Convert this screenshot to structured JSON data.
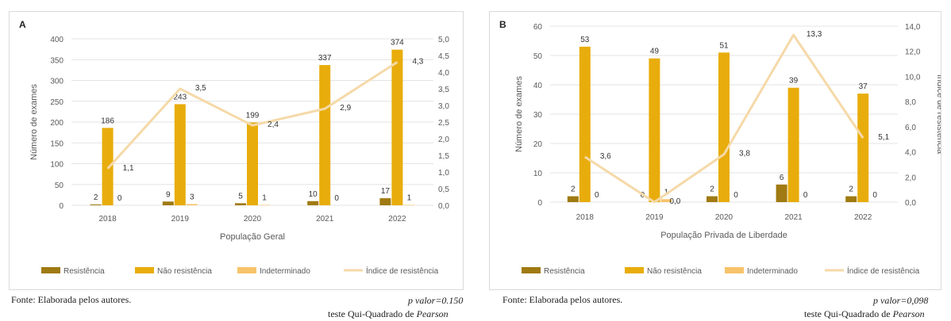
{
  "colors": {
    "resist": "#a07a12",
    "nonresist": "#e8ad0c",
    "indet": "#f7c46a",
    "index": "#f5d9a8",
    "grid": "#e3e3e3",
    "text": "#595959"
  },
  "chart_data": [
    {
      "panel_label": "A",
      "type": "bar",
      "categories": [
        "2018",
        "2019",
        "2020",
        "2021",
        "2022"
      ],
      "series": [
        {
          "name": "Resistência",
          "type": "bar",
          "axis": "left",
          "values": [
            2,
            9,
            5,
            10,
            17
          ],
          "labels": [
            "2",
            "9",
            "5",
            "10",
            "17"
          ]
        },
        {
          "name": "Não resistência",
          "type": "bar",
          "axis": "left",
          "values": [
            186,
            243,
            199,
            337,
            374
          ],
          "labels": [
            "186",
            "243",
            "199",
            "337",
            "374"
          ]
        },
        {
          "name": "Indeterminado",
          "type": "bar",
          "axis": "left",
          "values": [
            0,
            3,
            1,
            0,
            1
          ],
          "labels": [
            "0",
            "3",
            "1",
            "0",
            "1"
          ]
        },
        {
          "name": "Índice de resistência",
          "type": "line",
          "axis": "right",
          "values": [
            1.1,
            3.5,
            2.4,
            2.9,
            4.3
          ],
          "labels": [
            "1,1",
            "3,5",
            "2,4",
            "2,9",
            "4,3"
          ]
        }
      ],
      "xlabel": "População Geral",
      "ylabel": "Número de exames",
      "ylabel_right": "Índice de resistência",
      "ylim": [
        0,
        400
      ],
      "ylim_right": [
        0,
        5
      ],
      "yticks": [
        "0",
        "50",
        "100",
        "150",
        "200",
        "250",
        "300",
        "350",
        "400"
      ],
      "yticks_right": [
        "0,0",
        "0,5",
        "1,0",
        "1,5",
        "2,0",
        "2,5",
        "3,0",
        "3,5",
        "4,0",
        "4,5",
        "5,0"
      ],
      "grid": true,
      "legend_position": "bottom"
    },
    {
      "panel_label": "B",
      "type": "bar",
      "categories": [
        "2018",
        "2019",
        "2020",
        "2021",
        "2022"
      ],
      "series": [
        {
          "name": "Resistência",
          "type": "bar",
          "axis": "left",
          "values": [
            2,
            0,
            2,
            6,
            2
          ],
          "labels": [
            "2",
            "0",
            "2",
            "6",
            "2"
          ]
        },
        {
          "name": "Não resistência",
          "type": "bar",
          "axis": "left",
          "values": [
            53,
            49,
            51,
            39,
            37
          ],
          "labels": [
            "53",
            "49",
            "51",
            "39",
            "37"
          ]
        },
        {
          "name": "Indeterminado",
          "type": "bar",
          "axis": "left",
          "values": [
            0,
            1,
            0,
            0,
            0
          ],
          "labels": [
            "0",
            "1",
            "0",
            "0",
            "0"
          ]
        },
        {
          "name": "Índice de resistência",
          "type": "line",
          "axis": "right",
          "values": [
            3.6,
            0.0,
            3.8,
            13.3,
            5.1
          ],
          "labels": [
            "3,6",
            "0,0",
            "3,8",
            "13,3",
            "5,1"
          ]
        }
      ],
      "xlabel": "População Privada de Liberdade",
      "ylabel": "Número de exames",
      "ylabel_right": "Índice de resistência",
      "ylim": [
        0,
        60
      ],
      "ylim_right": [
        0,
        14
      ],
      "yticks": [
        "0",
        "10",
        "20",
        "30",
        "40",
        "50",
        "60"
      ],
      "yticks_right": [
        "0,0",
        "2,0",
        "4,0",
        "6,0",
        "8,0",
        "10,0",
        "12,0",
        "14,0"
      ],
      "grid": true,
      "legend_position": "bottom"
    }
  ],
  "footer": {
    "left_source": "Fonte: Elaborada pelos autores.",
    "left_pvalue": "p valor=0.150",
    "left_test": "teste Qui-Quadrado de ",
    "right_source": "Fonte: Elaborada pelos autores.",
    "right_pvalue": "p valor=0,098",
    "right_test": "teste Qui-Quadrado de ",
    "test_name": "Pearson"
  }
}
